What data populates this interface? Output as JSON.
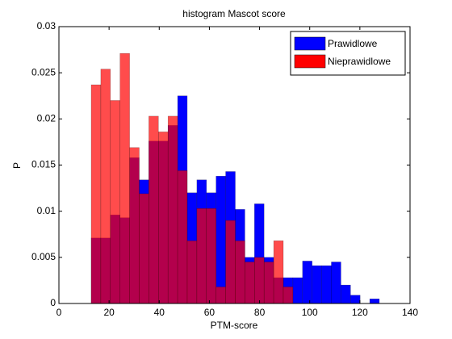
{
  "chart_data": {
    "type": "histogram",
    "title": "histogram Mascot score",
    "x_label": "PTM-score",
    "y_label": "P",
    "bins": [
      12.87,
      16.7,
      20.53,
      24.36,
      28.19,
      32.02,
      35.85,
      39.68,
      43.51,
      47.34,
      51.17,
      55,
      58.83,
      62.66,
      66.49,
      70.32,
      74.15,
      77.98,
      81.81,
      85.64,
      89.47,
      93.3,
      97.13,
      100.96,
      104.79,
      108.62,
      112.45,
      116.28,
      120.11,
      123.94,
      127.77
    ],
    "series": [
      {
        "name": "Prawidlowe",
        "color": "#0000ff",
        "opacity": 1,
        "values": [
          0.0071,
          0.0071,
          0.0096,
          0.0093,
          0.0158,
          0.0134,
          0.0176,
          0.0176,
          0.0193,
          0.0225,
          0.012,
          0.0134,
          0.012,
          0.0138,
          0.0143,
          0.0102,
          0.005,
          0.0108,
          0.005,
          0.0028,
          0.0028,
          0.0028,
          0.0046,
          0.0041,
          0.0041,
          0.0045,
          0.002,
          0.0009,
          0,
          0.0005
        ]
      },
      {
        "name": "Nieprawidlowe",
        "color": "#ff0000",
        "opacity": 0.7,
        "values": [
          0.0237,
          0.0254,
          0.022,
          0.0271,
          0.0169,
          0.0119,
          0.0203,
          0.0186,
          0.0203,
          0.0144,
          0.0068,
          0.0103,
          0.0103,
          0.0018,
          0.009,
          0.0068,
          0.0045,
          0.005,
          0.0045,
          0.0068,
          0.0018,
          0,
          0,
          0,
          0,
          0,
          0,
          0,
          0,
          0
        ]
      }
    ],
    "xlim": [
      0,
      140
    ],
    "xticks": [
      0,
      20,
      40,
      60,
      80,
      100,
      120,
      140
    ],
    "ylim": [
      0,
      0.03
    ],
    "yticks": [
      0,
      0.005,
      0.01,
      0.015,
      0.02,
      0.025,
      0.03
    ],
    "legend": "top-right",
    "grid": false
  }
}
